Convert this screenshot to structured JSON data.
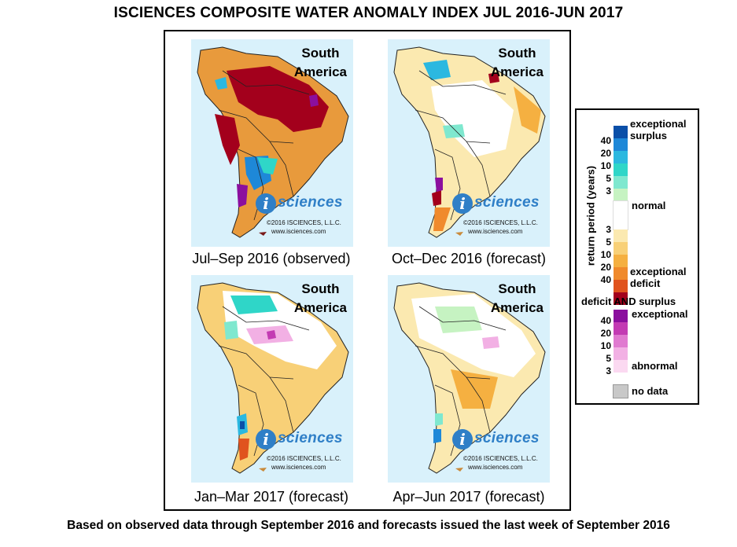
{
  "title": "ISCIENCES COMPOSITE WATER ANOMALY INDEX JUL 2016-JUN 2017",
  "footer": "Based on observed data through September 2016 and forecasts issued the last week of September 2016",
  "maps": [
    {
      "caption": "Jul–Sep 2016 (observed)",
      "region_line1": "South",
      "region_line2": "America",
      "logo_i": "i",
      "logo_word": "sciences",
      "copyright": "©2016 ISCIENCES, L.L.C.",
      "website": "www.isciences.com"
    },
    {
      "caption": "Oct–Dec 2016 (forecast)",
      "region_line1": "South",
      "region_line2": "America",
      "logo_i": "i",
      "logo_word": "sciences",
      "copyright": "©2016 ISCIENCES, L.L.C.",
      "website": "www.isciences.com"
    },
    {
      "caption": "Jan–Mar 2017 (forecast)",
      "region_line1": "South",
      "region_line2": "America",
      "logo_i": "i",
      "logo_word": "sciences",
      "copyright": "©2016 ISCIENCES, L.L.C.",
      "website": "www.isciences.com"
    },
    {
      "caption": "Apr–Jun 2017 (forecast)",
      "region_line1": "South",
      "region_line2": "America",
      "logo_i": "i",
      "logo_word": "sciences",
      "copyright": "©2016 ISCIENCES, L.L.C.",
      "website": "www.isciences.com"
    }
  ],
  "legend": {
    "axis_label": "return period (years)",
    "surplus_label_1": "exceptional",
    "surplus_label_2": "surplus",
    "normal_label": "normal",
    "deficit_label_1": "exceptional",
    "deficit_label_2": "deficit",
    "both_title": "deficit AND surplus",
    "both_exceptional": "exceptional",
    "both_abnormal": "abnormal",
    "no_data": "no data",
    "surplus_ticks": [
      "40",
      "20",
      "10",
      "5",
      "3"
    ],
    "deficit_ticks": [
      "3",
      "5",
      "10",
      "20",
      "40"
    ],
    "both_ticks": [
      "40",
      "20",
      "10",
      "5",
      "3"
    ],
    "colors": {
      "surplus": [
        "#0a4fa8",
        "#1e88d8",
        "#2bb8e0",
        "#2fd6c8",
        "#7fe8cf",
        "#c6f3c2"
      ],
      "normal": "#ffffff",
      "deficit": [
        "#fbe9b0",
        "#f8d077",
        "#f5b041",
        "#f08a2c",
        "#e0531e",
        "#a3001c"
      ],
      "both": [
        "#8b0f9e",
        "#c33bb3",
        "#e07ad0",
        "#f2b0e4",
        "#fbd9f1"
      ],
      "no_data": "#c8c8c8",
      "ocean": "#d9f1fb"
    }
  }
}
